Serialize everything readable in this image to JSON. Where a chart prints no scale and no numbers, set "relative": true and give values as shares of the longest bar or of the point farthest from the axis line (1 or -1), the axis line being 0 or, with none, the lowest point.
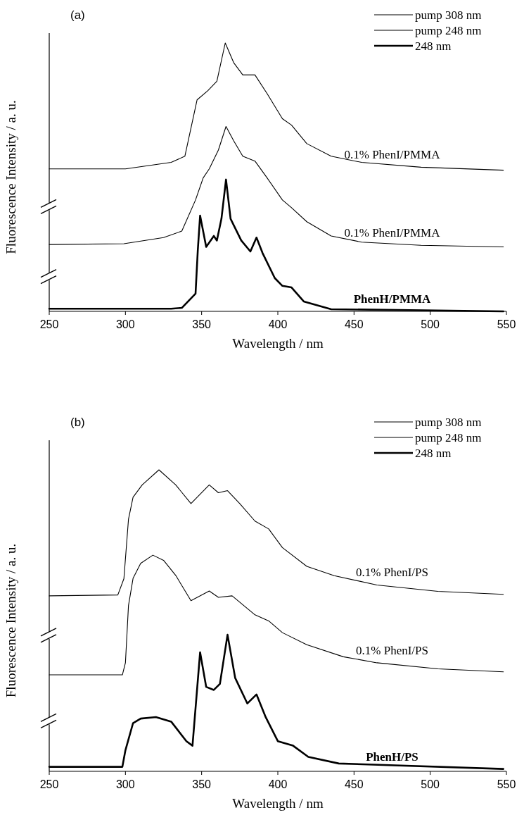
{
  "chart_data": [
    {
      "type": "line",
      "title": "(a)",
      "xlabel": "Wavelength / nm",
      "ylabel": "Fluorescence Intensity / a. u.",
      "relative": true,
      "xlim": [
        250,
        550
      ],
      "xticks": [
        250,
        300,
        350,
        400,
        450,
        500,
        550
      ],
      "legend": "top right",
      "grid": false,
      "marker": "none",
      "line_style": "solid",
      "annotations": [
        "0.1% PhenI/PMMA",
        "0.1% PhenI/PMMA",
        "PhenH/PMMA"
      ],
      "series": [
        {
          "name": "pump 308 nm",
          "color": "#000000",
          "x": [
            250,
            300,
            330,
            339,
            347,
            354,
            360,
            365.5,
            371,
            377,
            385,
            393,
            403,
            409,
            419,
            435,
            455,
            494,
            548
          ],
          "values": [
            0.531,
            0.531,
            0.555,
            0.578,
            0.788,
            0.822,
            0.857,
            1,
            0.927,
            0.881,
            0.881,
            0.811,
            0.718,
            0.694,
            0.625,
            0.578,
            0.555,
            0.537,
            0.526
          ]
        },
        {
          "name": "pump 248 nm",
          "color": "#000000",
          "x": [
            250,
            299,
            325,
            337,
            346,
            351,
            355,
            361,
            366,
            371,
            377,
            385,
            393,
            403,
            409,
            419,
            435,
            455,
            494,
            548
          ],
          "values": [
            0.249,
            0.252,
            0.275,
            0.299,
            0.415,
            0.497,
            0.531,
            0.601,
            0.689,
            0.636,
            0.578,
            0.56,
            0.497,
            0.415,
            0.386,
            0.334,
            0.281,
            0.258,
            0.246,
            0.24
          ]
        },
        {
          "name": "248 nm",
          "color": "#000000",
          "x": [
            250,
            330,
            337,
            346,
            347.5,
            349,
            353,
            358,
            360,
            363,
            366,
            369,
            376,
            382,
            386,
            390,
            398,
            403,
            409,
            417,
            435,
            548
          ],
          "values": [
            0.01,
            0.01,
            0.013,
            0.066,
            0.229,
            0.357,
            0.24,
            0.281,
            0.264,
            0.345,
            0.491,
            0.345,
            0.264,
            0.223,
            0.275,
            0.217,
            0.124,
            0.095,
            0.089,
            0.037,
            0.008,
            0
          ]
        }
      ]
    },
    {
      "type": "line",
      "title": "(b)",
      "xlabel": "Wavelength / nm",
      "ylabel": "Fluorescence Intensity / a. u.",
      "relative": true,
      "xlim": [
        250,
        550
      ],
      "xticks": [
        250,
        300,
        350,
        400,
        450,
        500,
        550
      ],
      "legend": "top right",
      "grid": false,
      "marker": "none",
      "line_style": "solid",
      "annotations": [
        "0.1% PhenI/PS",
        "0.1% PhenI/PS",
        "PhenH/PS"
      ],
      "series": [
        {
          "name": "pump 308 nm",
          "color": "#000000",
          "x": [
            250,
            295,
            299,
            302,
            305,
            311,
            322,
            333,
            343,
            355,
            361,
            367,
            375,
            385,
            394,
            403,
            419,
            437,
            465,
            505,
            548
          ],
          "values": [
            0.582,
            0.585,
            0.639,
            0.836,
            0.909,
            0.95,
            1,
            0.95,
            0.888,
            0.95,
            0.924,
            0.931,
            0.888,
            0.83,
            0.804,
            0.742,
            0.68,
            0.649,
            0.618,
            0.597,
            0.587
          ]
        },
        {
          "name": "pump 248 nm",
          "color": "#000000",
          "x": [
            250,
            298,
            300,
            302,
            305,
            310,
            318,
            325,
            333,
            343,
            355,
            361,
            370,
            375,
            385,
            394,
            403,
            419,
            443,
            465,
            505,
            548
          ],
          "values": [
            0.32,
            0.32,
            0.36,
            0.55,
            0.64,
            0.69,
            0.717,
            0.7,
            0.65,
            0.566,
            0.598,
            0.577,
            0.582,
            0.561,
            0.519,
            0.499,
            0.46,
            0.42,
            0.38,
            0.36,
            0.34,
            0.33
          ]
        },
        {
          "name": "248 nm",
          "color": "#000000",
          "x": [
            250,
            298,
            300,
            305,
            310,
            320,
            330,
            340,
            344,
            349,
            353,
            358,
            362,
            367,
            372,
            380,
            386,
            392,
            400,
            410,
            420,
            440,
            548
          ],
          "values": [
            0.015,
            0.015,
            0.07,
            0.16,
            0.175,
            0.18,
            0.165,
            0.1,
            0.085,
            0.395,
            0.28,
            0.27,
            0.29,
            0.453,
            0.31,
            0.225,
            0.255,
            0.18,
            0.1,
            0.085,
            0.048,
            0.026,
            0.008
          ]
        }
      ]
    }
  ]
}
